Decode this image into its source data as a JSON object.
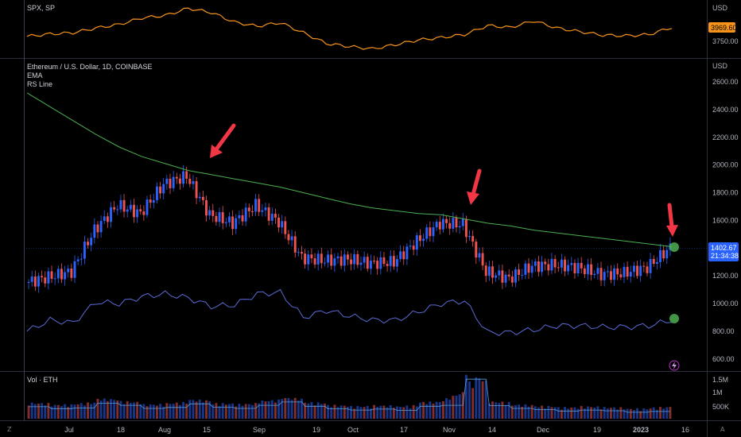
{
  "spx_pane": {
    "title": "SPX, SP",
    "currency": "USD",
    "price_tag": "3969.60",
    "tick_label": "3750.00"
  },
  "main_pane": {
    "title": "Ethereum / U.S. Dollar, 1D, COINBASE",
    "indicator_ema": "EMA",
    "indicator_rs": "RS Line",
    "currency": "USD",
    "price_tag": "1402.67",
    "countdown": "21:34:38",
    "price_ticks": [
      "2600.00",
      "2400.00",
      "2200.00",
      "2000.00",
      "1800.00",
      "1600.00",
      "1200.00",
      "1000.00",
      "800.00",
      "600.00"
    ]
  },
  "volume_pane": {
    "title": "Vol · ETH",
    "ticks": [
      "1.5M",
      "1M",
      "500K"
    ]
  },
  "time_axis": {
    "labels": [
      "Jul",
      "18",
      "Aug",
      "15",
      "Sep",
      "19",
      "Oct",
      "17",
      "Nov",
      "14",
      "Dec",
      "19",
      "2023",
      "16"
    ]
  },
  "corner_icons": {
    "left": "Z",
    "right": "A"
  },
  "colors": {
    "background": "#000000",
    "spx_line": "#f7931a",
    "ema_line": "#4caf50",
    "rs_line": "#5b6bd6",
    "candle_up": "#2962ff",
    "candle_down": "#ef5350",
    "arrow": "#f23645",
    "marker": "#4caf50",
    "price_tag": "#2962ff",
    "spx_tag": "#f7931a"
  },
  "chart_data": [
    {
      "type": "line",
      "name": "SPX",
      "title": "SPX, SP",
      "ylim": [
        3550,
        4350
      ],
      "x": [
        "Jun 27",
        "Jul 4",
        "Jul 11",
        "Jul 18",
        "Jul 25",
        "Aug 1",
        "Aug 8",
        "Aug 15",
        "Aug 22",
        "Aug 29",
        "Sep 5",
        "Sep 12",
        "Sep 19",
        "Sep 26",
        "Oct 3",
        "Oct 10",
        "Oct 17",
        "Oct 24",
        "Oct 31",
        "Nov 7",
        "Nov 14",
        "Nov 21",
        "Nov 28",
        "Dec 5",
        "Dec 12",
        "Dec 19",
        "Dec 26",
        "Jan 2",
        "Jan 9"
      ],
      "values": [
        3820,
        3860,
        3880,
        3960,
        4020,
        4130,
        4170,
        4290,
        4220,
        4060,
        3990,
        4050,
        3880,
        3700,
        3650,
        3610,
        3680,
        3760,
        3800,
        3850,
        4000,
        3970,
        4080,
        3960,
        3900,
        3840,
        3830,
        3850,
        3969.6
      ]
    },
    {
      "type": "candlestick",
      "title": "Ethereum / U.S. Dollar, 1D, COINBASE",
      "ylim": [
        520,
        2750
      ],
      "ylabel": "USD",
      "x": [
        "Jun 27",
        "Jul 4",
        "Jul 11",
        "Jul 18",
        "Jul 25",
        "Aug 1",
        "Aug 8",
        "Aug 15",
        "Aug 22",
        "Aug 29",
        "Sep 5",
        "Sep 12",
        "Sep 19",
        "Sep 26",
        "Oct 3",
        "Oct 10",
        "Oct 17",
        "Oct 24",
        "Oct 31",
        "Nov 7",
        "Nov 14",
        "Nov 21",
        "Nov 28",
        "Dec 5",
        "Dec 12",
        "Dec 19",
        "Dec 26",
        "Jan 2",
        "Jan 9"
      ],
      "close": [
        1150,
        1190,
        1230,
        1530,
        1710,
        1650,
        1860,
        1920,
        1640,
        1580,
        1710,
        1590,
        1330,
        1310,
        1320,
        1290,
        1300,
        1450,
        1580,
        1570,
        1230,
        1180,
        1270,
        1280,
        1260,
        1210,
        1220,
        1260,
        1402.67
      ],
      "series": [
        {
          "name": "EMA",
          "values": [
            2520,
            2420,
            2320,
            2220,
            2130,
            2060,
            2010,
            1960,
            1930,
            1900,
            1870,
            1840,
            1800,
            1760,
            1720,
            1690,
            1670,
            1650,
            1640,
            1610,
            1580,
            1560,
            1530,
            1510,
            1490,
            1470,
            1450,
            1430,
            1410
          ]
        },
        {
          "name": "RS Line",
          "values": [
            800,
            880,
            860,
            1010,
            1000,
            1050,
            1070,
            1040,
            980,
            990,
            1070,
            1080,
            900,
            950,
            910,
            880,
            880,
            940,
            1000,
            1020,
            790,
            790,
            810,
            840,
            840,
            830,
            830,
            840,
            880
          ]
        }
      ]
    },
    {
      "type": "bar",
      "title": "Vol · ETH",
      "ylim": [
        0,
        1700000
      ],
      "x": [
        "Jun 27",
        "Jul 4",
        "Jul 11",
        "Jul 18",
        "Jul 25",
        "Aug 1",
        "Aug 8",
        "Aug 15",
        "Aug 22",
        "Aug 29",
        "Sep 5",
        "Sep 12",
        "Sep 19",
        "Sep 26",
        "Oct 3",
        "Oct 10",
        "Oct 17",
        "Oct 24",
        "Oct 31",
        "Nov 7",
        "Nov 14",
        "Nov 21",
        "Nov 28",
        "Dec 5",
        "Dec 12",
        "Dec 19",
        "Dec 26",
        "Jan 2",
        "Jan 9"
      ],
      "values": [
        500000,
        420000,
        450000,
        650000,
        560000,
        430000,
        470000,
        620000,
        480000,
        430000,
        560000,
        700000,
        520000,
        410000,
        360000,
        400000,
        350000,
        520000,
        560000,
        1650000,
        550000,
        430000,
        380000,
        320000,
        360000,
        330000,
        270000,
        300000,
        450000
      ]
    }
  ]
}
